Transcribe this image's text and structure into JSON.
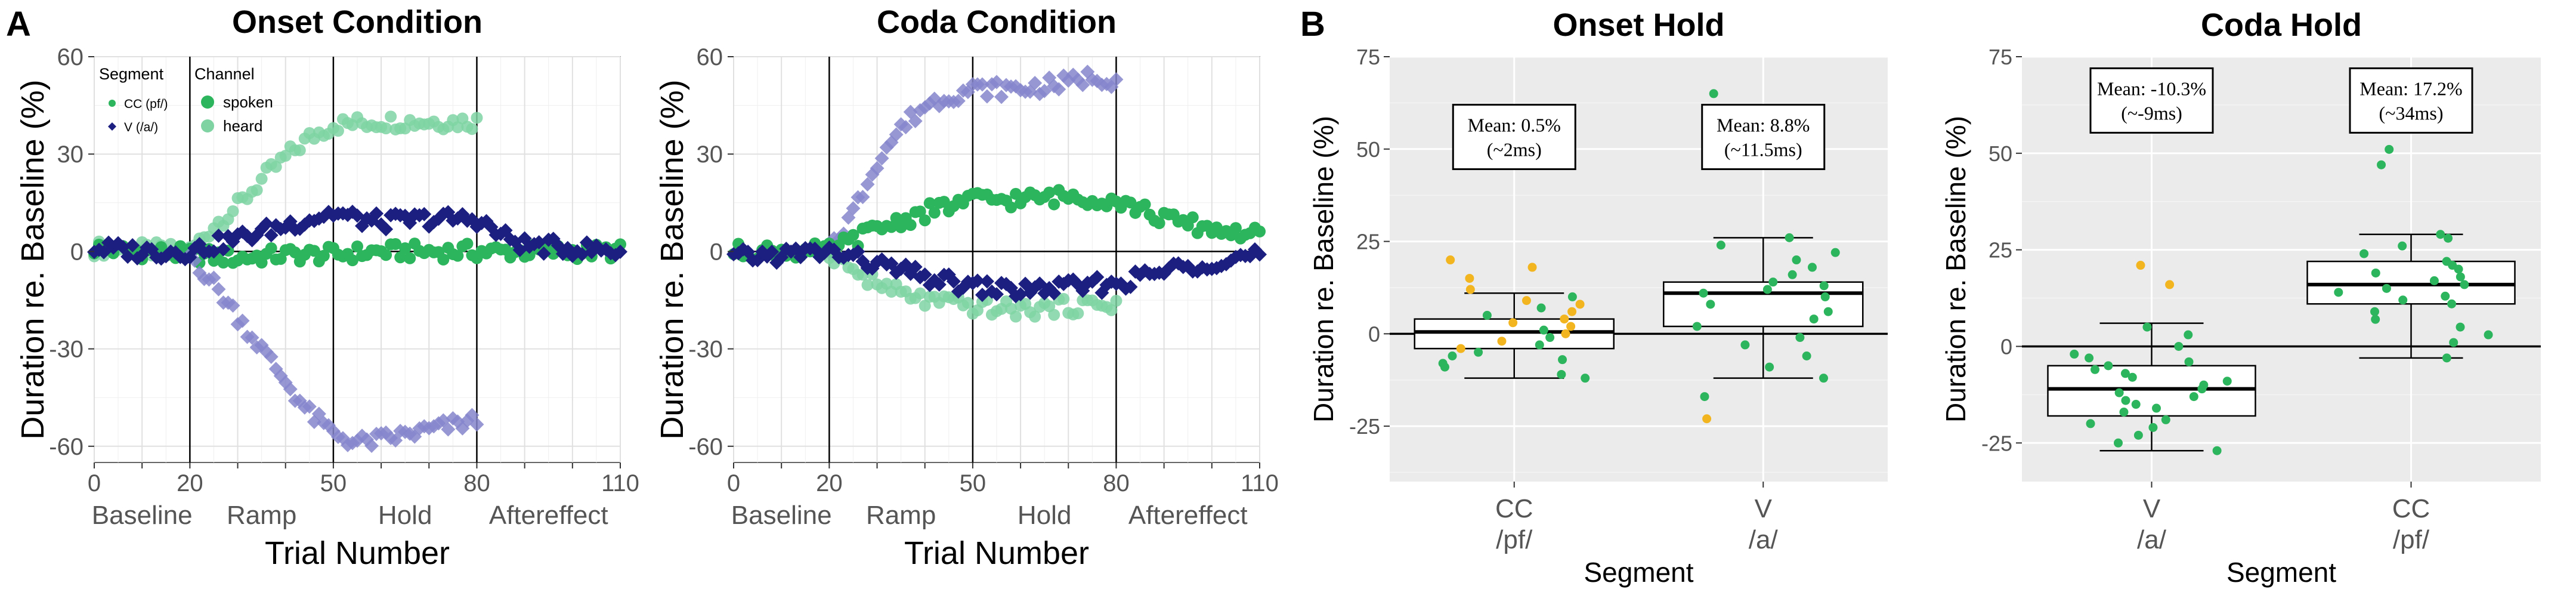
{
  "panel_labels": {
    "a": "A",
    "b": "B"
  },
  "colors": {
    "cc_spoken": "#2db55d",
    "cc_heard": "#7fd3a3",
    "v_spoken": "#1c1f80",
    "v_heard": "#8585cc",
    "dot_green": "#2db55d",
    "dot_yellow": "#f2b51f",
    "panel_bg": "#ebebeb"
  },
  "legend": {
    "segment_title": "Segment",
    "channel_title": "Channel",
    "segment_items": [
      "CC (pf/)",
      "V (/a/)"
    ],
    "channel_items": [
      "spoken",
      "heard"
    ]
  },
  "chart_data": [
    {
      "id": "onset-condition",
      "type": "scatter",
      "title": "Onset Condition",
      "xlabel": "Trial Number",
      "ylabel": "Duration re. Baseline (%)",
      "xlim": [
        0,
        110
      ],
      "ylim": [
        -65,
        60
      ],
      "xticks": [
        0,
        10,
        20,
        30,
        40,
        50,
        60,
        70,
        80,
        90,
        100,
        110
      ],
      "xtick_labels": [
        "0",
        "",
        "20",
        "",
        "",
        "50",
        "",
        "",
        "80",
        "",
        "",
        "110"
      ],
      "yticks": [
        -60,
        -30,
        0,
        30,
        60
      ],
      "phase_lines": [
        20,
        50,
        80
      ],
      "phases": [
        {
          "label": "Baseline",
          "center": 10
        },
        {
          "label": "Ramp",
          "center": 35
        },
        {
          "label": "Hold",
          "center": 65
        },
        {
          "label": "Aftereffect",
          "center": 95
        }
      ],
      "series": [
        {
          "name": "CC heard",
          "segment": "CC",
          "channel": "heard",
          "points": [
            [
              0,
              1
            ],
            [
              20,
              0
            ],
            [
              25,
              8
            ],
            [
              30,
              14
            ],
            [
              35,
              22
            ],
            [
              40,
              29
            ],
            [
              45,
              35
            ],
            [
              50,
              39
            ],
            [
              60,
              40
            ],
            [
              70,
              40
            ],
            [
              80,
              40
            ]
          ]
        },
        {
          "name": "CC spoken",
          "segment": "CC",
          "channel": "spoken",
          "points": [
            [
              0,
              1
            ],
            [
              10,
              0
            ],
            [
              20,
              -1
            ],
            [
              30,
              -2
            ],
            [
              40,
              -1
            ],
            [
              50,
              -1
            ],
            [
              60,
              0
            ],
            [
              70,
              0
            ],
            [
              80,
              0
            ],
            [
              90,
              0
            ],
            [
              100,
              0
            ],
            [
              110,
              0
            ]
          ]
        },
        {
          "name": "V heard",
          "segment": "V",
          "channel": "heard",
          "points": [
            [
              20,
              -1
            ],
            [
              25,
              -10
            ],
            [
              30,
              -20
            ],
            [
              35,
              -30
            ],
            [
              40,
              -40
            ],
            [
              45,
              -50
            ],
            [
              50,
              -56
            ],
            [
              55,
              -59
            ],
            [
              60,
              -58
            ],
            [
              70,
              -55
            ],
            [
              80,
              -52
            ]
          ]
        },
        {
          "name": "V spoken",
          "segment": "V",
          "channel": "spoken",
          "points": [
            [
              0,
              1
            ],
            [
              10,
              0
            ],
            [
              20,
              0
            ],
            [
              30,
              4
            ],
            [
              40,
              8
            ],
            [
              50,
              12
            ],
            [
              55,
              10
            ],
            [
              60,
              9
            ],
            [
              70,
              10
            ],
            [
              80,
              10
            ],
            [
              85,
              5
            ],
            [
              90,
              2
            ],
            [
              100,
              1
            ],
            [
              110,
              0
            ]
          ]
        }
      ]
    },
    {
      "id": "coda-condition",
      "type": "scatter",
      "title": "Coda Condition",
      "xlabel": "Trial Number",
      "ylabel": "Duration re. Baseline (%)",
      "xlim": [
        0,
        110
      ],
      "ylim": [
        -65,
        60
      ],
      "xticks": [
        0,
        10,
        20,
        30,
        40,
        50,
        60,
        70,
        80,
        90,
        100,
        110
      ],
      "xtick_labels": [
        "0",
        "",
        "20",
        "",
        "",
        "50",
        "",
        "",
        "80",
        "",
        "",
        "110"
      ],
      "yticks": [
        -60,
        -30,
        0,
        30,
        60
      ],
      "phase_lines": [
        20,
        50,
        80
      ],
      "phases": [
        {
          "label": "Baseline",
          "center": 10
        },
        {
          "label": "Ramp",
          "center": 35
        },
        {
          "label": "Hold",
          "center": 65
        },
        {
          "label": "Aftereffect",
          "center": 95
        }
      ],
      "series": [
        {
          "name": "V heard",
          "segment": "V",
          "channel": "heard",
          "points": [
            [
              20,
              1
            ],
            [
              25,
              12
            ],
            [
              30,
              28
            ],
            [
              35,
              38
            ],
            [
              40,
              45
            ],
            [
              45,
              48
            ],
            [
              50,
              50
            ],
            [
              60,
              50
            ],
            [
              70,
              52
            ],
            [
              75,
              54
            ],
            [
              80,
              53
            ]
          ]
        },
        {
          "name": "CC spoken",
          "segment": "CC",
          "channel": "spoken",
          "points": [
            [
              0,
              0
            ],
            [
              10,
              0
            ],
            [
              20,
              0
            ],
            [
              30,
              7
            ],
            [
              40,
              12
            ],
            [
              50,
              16
            ],
            [
              60,
              16
            ],
            [
              70,
              17
            ],
            [
              80,
              16
            ],
            [
              90,
              10
            ],
            [
              100,
              7
            ],
            [
              110,
              5
            ]
          ]
        },
        {
          "name": "CC heard",
          "segment": "CC",
          "channel": "heard",
          "points": [
            [
              20,
              0
            ],
            [
              25,
              -6
            ],
            [
              30,
              -10
            ],
            [
              35,
              -13
            ],
            [
              40,
              -15
            ],
            [
              50,
              -17
            ],
            [
              60,
              -18
            ],
            [
              70,
              -17
            ],
            [
              80,
              -16
            ]
          ]
        },
        {
          "name": "V spoken",
          "segment": "V",
          "channel": "spoken",
          "points": [
            [
              0,
              -2
            ],
            [
              10,
              -1
            ],
            [
              20,
              0
            ],
            [
              30,
              -4
            ],
            [
              40,
              -8
            ],
            [
              50,
              -11
            ],
            [
              60,
              -12
            ],
            [
              70,
              -11
            ],
            [
              80,
              -10
            ],
            [
              90,
              -6
            ],
            [
              100,
              -3
            ],
            [
              110,
              -1
            ]
          ]
        }
      ]
    },
    {
      "id": "onset-hold",
      "type": "box",
      "title": "Onset Hold",
      "xlabel": "Segment",
      "ylabel": "Duration re. Baseline (%)",
      "ylim": [
        -40,
        75
      ],
      "yticks": [
        -25,
        0,
        25,
        50,
        75
      ],
      "categories": [
        "CC\n/pf/",
        "V\n/a/"
      ],
      "boxes": [
        {
          "q1": -4,
          "median": 0.5,
          "q3": 4,
          "whisker_low": -12,
          "whisker_high": 11
        },
        {
          "q1": 2,
          "median": 11,
          "q3": 14,
          "whisker_low": -12,
          "whisker_high": 26
        }
      ],
      "points": [
        [
          [
            -12,
            "g"
          ],
          [
            -11,
            "g"
          ],
          [
            -9,
            "g"
          ],
          [
            -8,
            "g"
          ],
          [
            -7,
            "g"
          ],
          [
            -6,
            "g"
          ],
          [
            -5,
            "g"
          ],
          [
            -4,
            "y"
          ],
          [
            -3,
            "g"
          ],
          [
            -2,
            "y"
          ],
          [
            -1,
            "g"
          ],
          [
            0,
            "y"
          ],
          [
            1,
            "g"
          ],
          [
            2,
            "y"
          ],
          [
            3,
            "y"
          ],
          [
            4,
            "y"
          ],
          [
            5,
            "g"
          ],
          [
            6,
            "y"
          ],
          [
            7,
            "g"
          ],
          [
            8,
            "y"
          ],
          [
            9,
            "y"
          ],
          [
            10,
            "g"
          ],
          [
            12,
            "y"
          ],
          [
            15,
            "y"
          ],
          [
            18,
            "y"
          ],
          [
            20,
            "y"
          ]
        ],
        [
          [
            -23,
            "y"
          ],
          [
            -17,
            "g"
          ],
          [
            -12,
            "g"
          ],
          [
            -9,
            "g"
          ],
          [
            -6,
            "g"
          ],
          [
            -3,
            "g"
          ],
          [
            -1,
            "g"
          ],
          [
            2,
            "g"
          ],
          [
            4,
            "g"
          ],
          [
            6,
            "g"
          ],
          [
            8,
            "g"
          ],
          [
            10,
            "g"
          ],
          [
            11,
            "g"
          ],
          [
            12,
            "g"
          ],
          [
            13,
            "g"
          ],
          [
            14,
            "g"
          ],
          [
            16,
            "g"
          ],
          [
            18,
            "g"
          ],
          [
            20,
            "g"
          ],
          [
            22,
            "g"
          ],
          [
            24,
            "g"
          ],
          [
            26,
            "g"
          ],
          [
            65,
            "g"
          ]
        ]
      ],
      "annotations": [
        {
          "text": "Mean: 0.5%",
          "sub": "(~2ms)"
        },
        {
          "text": "Mean: 8.8%",
          "sub": "(~11.5ms)"
        }
      ]
    },
    {
      "id": "coda-hold",
      "type": "box",
      "title": "Coda Hold",
      "xlabel": "Segment",
      "ylabel": "Duration re. Baseline (%)",
      "ylim": [
        -35,
        75
      ],
      "yticks": [
        -25,
        0,
        25,
        50,
        75
      ],
      "categories": [
        "V\n/a/",
        "CC\n/pf/"
      ],
      "boxes": [
        {
          "q1": -18,
          "median": -11,
          "q3": -5,
          "whisker_low": -27,
          "whisker_high": 6
        },
        {
          "q1": 11,
          "median": 16,
          "q3": 22,
          "whisker_low": -3,
          "whisker_high": 29
        }
      ],
      "points": [
        [
          [
            -27,
            "g"
          ],
          [
            -25,
            "g"
          ],
          [
            -23,
            "g"
          ],
          [
            -21,
            "g"
          ],
          [
            -20,
            "g"
          ],
          [
            -19,
            "g"
          ],
          [
            -17,
            "g"
          ],
          [
            -16,
            "g"
          ],
          [
            -15,
            "g"
          ],
          [
            -14,
            "g"
          ],
          [
            -13,
            "g"
          ],
          [
            -12,
            "g"
          ],
          [
            -11,
            "g"
          ],
          [
            -10,
            "g"
          ],
          [
            -9,
            "g"
          ],
          [
            -8,
            "g"
          ],
          [
            -7,
            "g"
          ],
          [
            -6,
            "g"
          ],
          [
            -5,
            "g"
          ],
          [
            -4,
            "g"
          ],
          [
            -3,
            "g"
          ],
          [
            -2,
            "g"
          ],
          [
            0,
            "g"
          ],
          [
            3,
            "g"
          ],
          [
            5,
            "g"
          ],
          [
            16,
            "y"
          ],
          [
            21,
            "y"
          ]
        ],
        [
          [
            -3,
            "g"
          ],
          [
            1,
            "g"
          ],
          [
            3,
            "g"
          ],
          [
            5,
            "g"
          ],
          [
            7,
            "g"
          ],
          [
            9,
            "g"
          ],
          [
            11,
            "g"
          ],
          [
            12,
            "g"
          ],
          [
            13,
            "g"
          ],
          [
            14,
            "g"
          ],
          [
            15,
            "g"
          ],
          [
            16,
            "g"
          ],
          [
            17,
            "g"
          ],
          [
            18,
            "g"
          ],
          [
            19,
            "g"
          ],
          [
            20,
            "g"
          ],
          [
            21,
            "g"
          ],
          [
            22,
            "g"
          ],
          [
            24,
            "g"
          ],
          [
            26,
            "g"
          ],
          [
            28,
            "g"
          ],
          [
            29,
            "g"
          ],
          [
            47,
            "g"
          ],
          [
            51,
            "g"
          ]
        ]
      ],
      "annotations": [
        {
          "text": "Mean: -10.3%",
          "sub": "(~-9ms)"
        },
        {
          "text": "Mean: 17.2%",
          "sub": "(~34ms)"
        }
      ]
    }
  ]
}
